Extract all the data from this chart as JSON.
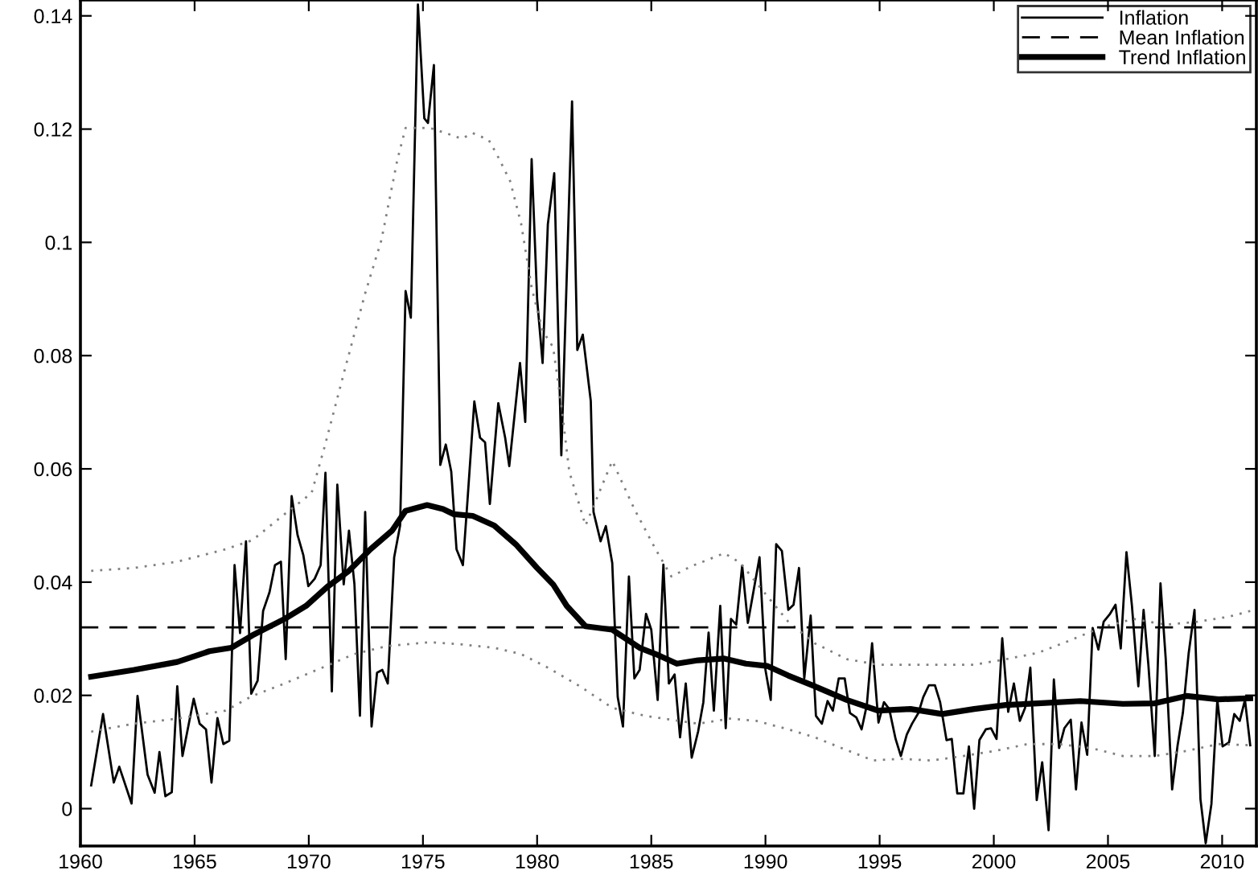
{
  "chart_data": {
    "type": "line",
    "xlim": [
      1960,
      2011.5
    ],
    "ylim": [
      -0.0066,
      0.1428
    ],
    "xticks": [
      1960,
      1965,
      1970,
      1975,
      1980,
      1985,
      1990,
      1995,
      2000,
      2005,
      2010
    ],
    "yticks": [
      0,
      0.02,
      0.04,
      0.06,
      0.08,
      0.1,
      0.12,
      0.14
    ],
    "legend": "top right",
    "grid": false,
    "ref_lines": [
      {
        "axis": "y",
        "value": 0.032,
        "label": "Mean Inflation",
        "line_style": "dashed",
        "color": "#000000"
      }
    ],
    "series": [
      {
        "name": "Inflation",
        "color": "#000000",
        "line_style": "solid",
        "x": [
          1960.47,
          1960.99,
          1961.46,
          1961.7,
          1962.24,
          1962.5,
          1962.94,
          1963.25,
          1963.46,
          1963.72,
          1964.0,
          1964.24,
          1964.47,
          1964.96,
          1965.22,
          1965.5,
          1965.74,
          1966.0,
          1966.26,
          1966.52,
          1966.75,
          1966.99,
          1967.25,
          1967.48,
          1967.76,
          1968.0,
          1968.28,
          1968.52,
          1968.78,
          1968.99,
          1969.25,
          1969.51,
          1969.76,
          1969.98,
          1970.26,
          1970.52,
          1970.73,
          1971.01,
          1971.25,
          1971.53,
          1971.76,
          1972.0,
          1972.24,
          1972.47,
          1972.75,
          1972.99,
          1973.22,
          1973.46,
          1973.74,
          1974.0,
          1974.24,
          1974.47,
          1974.78,
          1975.06,
          1975.22,
          1975.48,
          1975.76,
          1976.0,
          1976.24,
          1976.47,
          1976.75,
          1976.94,
          1977.25,
          1977.5,
          1977.72,
          1977.93,
          1978.3,
          1978.6,
          1978.78,
          1979.25,
          1979.48,
          1979.76,
          1980.0,
          1980.24,
          1980.47,
          1980.75,
          1981.06,
          1981.53,
          1981.76,
          1982.0,
          1982.35,
          1982.47,
          1982.78,
          1983.01,
          1983.29,
          1983.53,
          1983.76,
          1984.02,
          1984.26,
          1984.49,
          1984.77,
          1985.0,
          1985.28,
          1985.53,
          1985.77,
          1986.02,
          1986.26,
          1986.51,
          1986.77,
          1987.05,
          1987.28,
          1987.51,
          1987.74,
          1988.02,
          1988.26,
          1988.49,
          1988.72,
          1988.98,
          1989.23,
          1989.49,
          1989.74,
          1990.0,
          1990.23,
          1990.47,
          1990.72,
          1991.0,
          1991.23,
          1991.47,
          1991.7,
          1991.98,
          1992.21,
          1992.47,
          1992.72,
          1992.95,
          1993.21,
          1993.47,
          1993.7,
          1993.98,
          1994.21,
          1994.44,
          1994.67,
          1994.95,
          1995.19,
          1995.42,
          1995.7,
          1995.93,
          1996.19,
          1996.42,
          1996.7,
          1996.91,
          1997.16,
          1997.42,
          1997.65,
          1997.93,
          1998.16,
          1998.4,
          1998.67,
          1998.91,
          1999.14,
          1999.37,
          1999.65,
          1999.88,
          2000.12,
          2000.37,
          2000.63,
          2000.88,
          2001.14,
          2001.37,
          2001.6,
          2001.88,
          2002.12,
          2002.4,
          2002.63,
          2002.86,
          2003.09,
          2003.37,
          2003.6,
          2003.84,
          2004.09,
          2004.33,
          2004.58,
          2004.81,
          2005.09,
          2005.33,
          2005.56,
          2005.81,
          2006.05,
          2006.33,
          2006.56,
          2006.77,
          2007.05,
          2007.3,
          2007.53,
          2007.81,
          2008.05,
          2008.28,
          2008.53,
          2008.79,
          2009.05,
          2009.28,
          2009.53,
          2009.79,
          2010.02,
          2010.3,
          2010.53,
          2010.77,
          2011.0,
          2011.23
        ],
        "values": [
          0.0041,
          0.0167,
          0.0046,
          0.0074,
          0.0009,
          0.0199,
          0.006,
          0.0028,
          0.01,
          0.0022,
          0.0029,
          0.0216,
          0.0093,
          0.0194,
          0.015,
          0.014,
          0.0046,
          0.016,
          0.0114,
          0.012,
          0.043,
          0.031,
          0.0472,
          0.0203,
          0.0226,
          0.0349,
          0.0382,
          0.043,
          0.0436,
          0.0264,
          0.0552,
          0.0483,
          0.0448,
          0.0393,
          0.0406,
          0.043,
          0.0593,
          0.0207,
          0.0572,
          0.0396,
          0.0491,
          0.0396,
          0.0164,
          0.0524,
          0.0145,
          0.024,
          0.0245,
          0.0221,
          0.0444,
          0.05,
          0.0914,
          0.0867,
          0.142,
          0.1219,
          0.1211,
          0.1313,
          0.0607,
          0.0643,
          0.0595,
          0.0458,
          0.043,
          0.0538,
          0.0719,
          0.0655,
          0.0647,
          0.0538,
          0.0716,
          0.0655,
          0.0605,
          0.0787,
          0.0683,
          0.1147,
          0.09,
          0.0787,
          0.1032,
          0.1122,
          0.0624,
          0.1249,
          0.081,
          0.0837,
          0.072,
          0.0524,
          0.0472,
          0.0499,
          0.0434,
          0.0197,
          0.0145,
          0.041,
          0.023,
          0.0245,
          0.0344,
          0.0316,
          0.0192,
          0.0431,
          0.0221,
          0.0237,
          0.0126,
          0.0221,
          0.009,
          0.0136,
          0.0188,
          0.0311,
          0.0173,
          0.0358,
          0.0142,
          0.0335,
          0.0325,
          0.0429,
          0.0328,
          0.0387,
          0.0444,
          0.0245,
          0.0192,
          0.0467,
          0.0455,
          0.0351,
          0.036,
          0.0425,
          0.023,
          0.0341,
          0.0164,
          0.015,
          0.019,
          0.0173,
          0.023,
          0.023,
          0.0169,
          0.0161,
          0.014,
          0.0183,
          0.0292,
          0.0152,
          0.0188,
          0.0176,
          0.0123,
          0.0093,
          0.0131,
          0.015,
          0.0169,
          0.0197,
          0.0218,
          0.0218,
          0.0188,
          0.0121,
          0.0123,
          0.0027,
          0.0027,
          0.011,
          0.0,
          0.0121,
          0.014,
          0.0142,
          0.0123,
          0.0301,
          0.0171,
          0.0221,
          0.0155,
          0.0178,
          0.0249,
          0.0015,
          0.0082,
          -0.0038,
          0.0228,
          0.0107,
          0.0142,
          0.0157,
          0.0034,
          0.0152,
          0.0095,
          0.0319,
          0.0281,
          0.033,
          0.0344,
          0.036,
          0.0283,
          0.0453,
          0.0358,
          0.0216,
          0.0351,
          0.0254,
          0.0093,
          0.0398,
          0.0264,
          0.0034,
          0.0112,
          0.0169,
          0.0273,
          0.0351,
          0.0017,
          -0.0061,
          0.0008,
          0.0192,
          0.011,
          0.0117,
          0.0167,
          0.0155,
          0.0192,
          0.0112
        ]
      },
      {
        "name": "Trend Inflation",
        "color": "#000000",
        "line_style": "solid",
        "x": [
          1960.47,
          1962.35,
          1964.24,
          1965.65,
          1966.6,
          1967.53,
          1968.94,
          1969.88,
          1970.82,
          1971.76,
          1972.7,
          1973.65,
          1974.24,
          1975.18,
          1975.88,
          1976.35,
          1977.18,
          1978.12,
          1979.06,
          1980.0,
          1980.7,
          1981.3,
          1982.12,
          1983.29,
          1984.49,
          1985.19,
          1986.12,
          1987.05,
          1988.2,
          1989.14,
          1990.07,
          1991.0,
          1992.16,
          1993.56,
          1994.95,
          1996.35,
          1997.74,
          1999.14,
          2000.53,
          2001.93,
          2003.79,
          2005.65,
          2007.05,
          2008.44,
          2009.84,
          2011.23
        ],
        "values": [
          0.0233,
          0.0245,
          0.0259,
          0.0278,
          0.0284,
          0.0306,
          0.0335,
          0.0358,
          0.0392,
          0.042,
          0.0458,
          0.0491,
          0.0526,
          0.0536,
          0.0529,
          0.052,
          0.0517,
          0.05,
          0.0467,
          0.0425,
          0.0396,
          0.0358,
          0.0322,
          0.0316,
          0.0284,
          0.0273,
          0.0256,
          0.0262,
          0.0265,
          0.0256,
          0.0252,
          0.0235,
          0.0216,
          0.0192,
          0.0173,
          0.0176,
          0.0167,
          0.0176,
          0.0183,
          0.0186,
          0.019,
          0.0185,
          0.0186,
          0.0199,
          0.0193,
          0.0195
        ]
      },
      {
        "color": "#808080",
        "line_style": "dotted",
        "x": [
          1960.47,
          1962.35,
          1964.24,
          1966.35,
          1967.53,
          1968.94,
          1970.12,
          1970.7,
          1971.53,
          1972.47,
          1973.18,
          1973.88,
          1974.24,
          1975.3,
          1976.0,
          1976.7,
          1977.18,
          1977.88,
          1978.24,
          1978.82,
          1979.3,
          1979.76,
          1980.24,
          1980.7,
          1981.06,
          1981.41,
          1982.12,
          1983.29,
          1984.26,
          1985.19,
          1985.88,
          1986.81,
          1988.2,
          1988.9,
          1989.84,
          1991.0,
          1992.16,
          1993.56,
          1994.95,
          1996.35,
          1997.74,
          1999.14,
          2000.53,
          2001.93,
          2003.33,
          2004.72,
          2006.12,
          2007.51,
          2008.91,
          2010.3,
          2011.23
        ],
        "values": [
          0.042,
          0.0425,
          0.0436,
          0.0458,
          0.0474,
          0.052,
          0.0557,
          0.064,
          0.0768,
          0.091,
          0.1004,
          0.1146,
          0.1202,
          0.1202,
          0.1193,
          0.1183,
          0.1193,
          0.1181,
          0.1155,
          0.1108,
          0.1033,
          0.092,
          0.0844,
          0.0815,
          0.0712,
          0.0595,
          0.05,
          0.0614,
          0.0529,
          0.0458,
          0.041,
          0.0429,
          0.0451,
          0.0434,
          0.0387,
          0.033,
          0.0292,
          0.0264,
          0.0254,
          0.0254,
          0.0254,
          0.0254,
          0.0264,
          0.0275,
          0.0297,
          0.032,
          0.0335,
          0.0325,
          0.033,
          0.0339,
          0.0349
        ]
      },
      {
        "color": "#808080",
        "line_style": "dotted",
        "x": [
          1960.47,
          1962.35,
          1964.24,
          1966.35,
          1967.53,
          1968.94,
          1970.59,
          1972.0,
          1973.41,
          1975.3,
          1976.7,
          1978.12,
          1979.3,
          1980.47,
          1981.88,
          1983.29,
          1984.72,
          1985.88,
          1987.05,
          1988.44,
          1989.6,
          1991.0,
          1992.16,
          1993.33,
          1994.72,
          1995.88,
          1997.28,
          1998.67,
          2000.07,
          2001.47,
          2002.86,
          2004.26,
          2005.65,
          2007.05,
          2008.44,
          2009.84,
          2011.23
        ],
        "values": [
          0.0136,
          0.015,
          0.0159,
          0.0173,
          0.0199,
          0.0221,
          0.0249,
          0.0273,
          0.0287,
          0.0294,
          0.029,
          0.0284,
          0.0273,
          0.0249,
          0.0216,
          0.0178,
          0.0164,
          0.0157,
          0.015,
          0.0159,
          0.0155,
          0.014,
          0.0126,
          0.0107,
          0.0085,
          0.0088,
          0.0085,
          0.0093,
          0.0102,
          0.0114,
          0.0114,
          0.0107,
          0.0093,
          0.0093,
          0.0102,
          0.0114,
          0.0112
        ]
      }
    ]
  }
}
